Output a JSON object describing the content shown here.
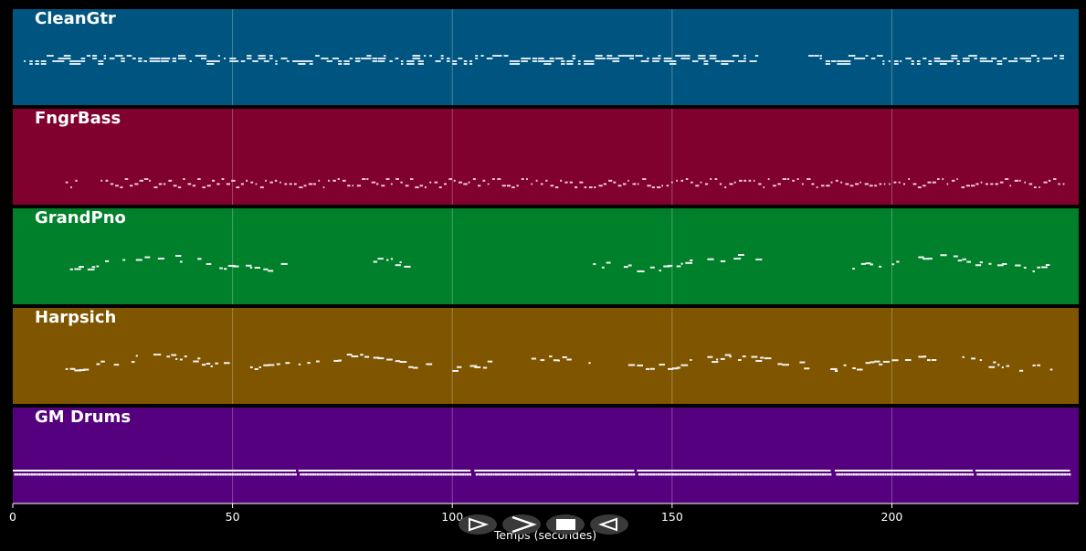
{
  "xaxis": {
    "label": "Temps (secondes)",
    "ticks": [
      0,
      50,
      100,
      150,
      200
    ],
    "min": 0,
    "max": 242.5
  },
  "tracks": [
    {
      "name": "CleanGtr",
      "color": "#005580",
      "density": 0.85,
      "segments": [
        [
          2.5,
          170
        ],
        [
          181,
          239
        ]
      ],
      "pattern": "chords"
    },
    {
      "name": "FngrBass",
      "color": "#80002e",
      "density": 0.55,
      "segments": [
        [
          12,
          15
        ],
        [
          20,
          239
        ]
      ],
      "pattern": "bass"
    },
    {
      "name": "GrandPno",
      "color": "#00802a",
      "density": 0.6,
      "segments": [
        [
          12,
          62
        ],
        [
          82,
          91
        ],
        [
          132,
          170
        ],
        [
          191,
          237
        ]
      ],
      "pattern": "melody"
    },
    {
      "name": "Harpsich",
      "color": "#7f5500",
      "density": 0.6,
      "segments": [
        [
          12,
          237
        ]
      ],
      "pattern": "melody"
    },
    {
      "name": "GM Drums",
      "color": "#55007f",
      "density": 1.0,
      "segments": [
        [
          0,
          64
        ],
        [
          65,
          104
        ],
        [
          105,
          141
        ],
        [
          142,
          186
        ],
        [
          187,
          218
        ],
        [
          219,
          240
        ]
      ],
      "pattern": "drums"
    }
  ],
  "controls": [
    {
      "id": "play",
      "icon": "play-icon"
    },
    {
      "id": "forward",
      "icon": "fast-forward-icon"
    },
    {
      "id": "stop",
      "icon": "stop-icon"
    },
    {
      "id": "back",
      "icon": "rewind-icon"
    }
  ]
}
